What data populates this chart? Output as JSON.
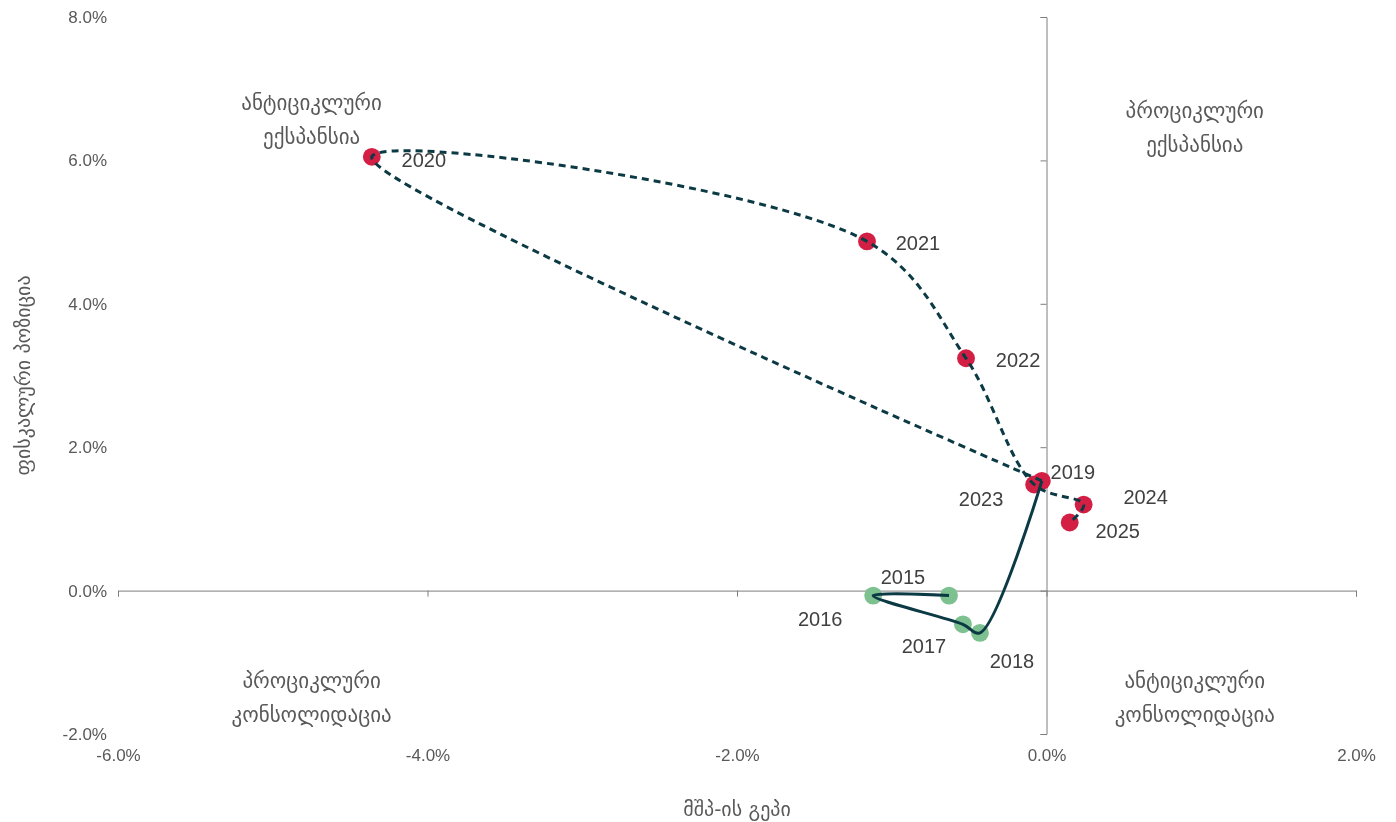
{
  "chart_data": {
    "type": "scatter",
    "xlabel": "მშპ-ის გეპი",
    "ylabel": "ფისკალური პოზიცია",
    "xlim": [
      -6,
      2
    ],
    "ylim": [
      -2,
      8
    ],
    "xticks": [
      {
        "value": -6,
        "label": "-6.0%"
      },
      {
        "value": -4,
        "label": "-4.0%"
      },
      {
        "value": -2,
        "label": "-2.0%"
      },
      {
        "value": 0,
        "label": "0.0%"
      },
      {
        "value": 2,
        "label": "2.0%"
      }
    ],
    "yticks": [
      {
        "value": -2,
        "label": "-2.0%"
      },
      {
        "value": 0,
        "label": "0.0%"
      },
      {
        "value": 2,
        "label": "2.0%"
      },
      {
        "value": 4,
        "label": "4.0%"
      },
      {
        "value": 6,
        "label": "6.0%"
      },
      {
        "value": 8,
        "label": "8.0%"
      }
    ],
    "grid": false,
    "series": [
      {
        "color": "#7dc190",
        "marker": "circle",
        "x": [
          -0.63,
          -1.12,
          -0.54,
          -0.43
        ],
        "values": [
          -0.07,
          -0.07,
          -0.47,
          -0.59
        ]
      },
      {
        "color": "#d41f45",
        "marker": "circle",
        "x": [
          -0.03,
          -4.36,
          -1.16,
          -0.52,
          -0.08,
          0.24,
          0.15
        ],
        "values": [
          1.53,
          6.05,
          4.87,
          3.24,
          1.48,
          1.2,
          0.95
        ]
      },
      {
        "type": "line",
        "color": "#0b3a44",
        "line_style": "solid",
        "marker": "none",
        "x": [
          -0.63,
          -1.12,
          -0.54,
          -0.43,
          -0.03
        ],
        "values": [
          -0.07,
          -0.07,
          -0.47,
          -0.59,
          1.53
        ]
      },
      {
        "type": "line",
        "color": "#0b3a44",
        "line_style": "dashed",
        "marker": "none",
        "x": [
          -0.03,
          -4.36,
          -1.16,
          -0.52,
          -0.08,
          0.24,
          0.15
        ],
        "values": [
          1.53,
          6.05,
          4.87,
          3.24,
          1.48,
          1.2,
          0.95
        ]
      }
    ],
    "annotations": [
      {
        "text": "2015",
        "x": -0.63,
        "y": -0.07
      },
      {
        "text": "2016",
        "x": -1.12,
        "y": -0.07
      },
      {
        "text": "2017",
        "x": -0.54,
        "y": -0.47
      },
      {
        "text": "2018",
        "x": -0.43,
        "y": -0.59
      },
      {
        "text": "2019",
        "x": -0.03,
        "y": 1.53
      },
      {
        "text": "2020",
        "x": -4.36,
        "y": 6.05
      },
      {
        "text": "2021",
        "x": -1.16,
        "y": 4.87
      },
      {
        "text": "2022",
        "x": -0.52,
        "y": 3.24
      },
      {
        "text": "2023",
        "x": -0.08,
        "y": 1.48
      },
      {
        "text": "2024",
        "x": 0.24,
        "y": 1.2
      },
      {
        "text": "2025",
        "x": 0.15,
        "y": 0.95
      },
      "ანტიციკლური\nექსპანსია",
      "პროციკლური\nექსპანსია",
      "პროციკლური\nკონსოლიდაცია",
      "ანტიციკლური\nკონსოლიდაცია"
    ]
  }
}
